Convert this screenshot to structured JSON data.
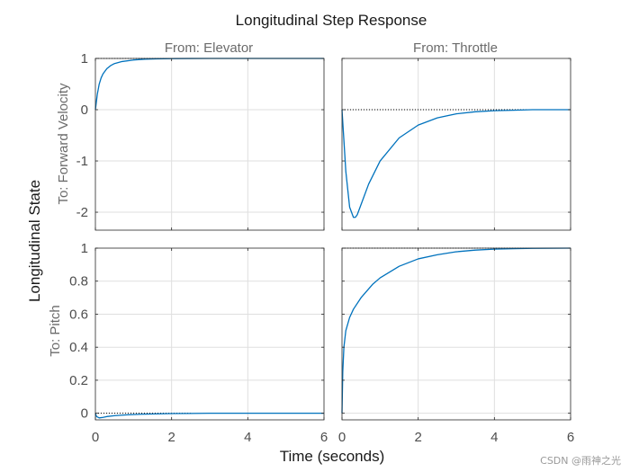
{
  "chart_data": {
    "type": "line",
    "title": "Longitudinal Step Response",
    "xlabel": "Time (seconds)",
    "ylabel": "Longitudinal State",
    "xlim": [
      0,
      6
    ],
    "xticks": [
      "0",
      "2",
      "4",
      "6"
    ],
    "grid": true,
    "line_color": "#0072bd",
    "steady_state_line": "dotted black",
    "columns": [
      "From: Elevator",
      "From: Throttle"
    ],
    "rows": [
      {
        "label": "To: Forward Velocity",
        "ylim": [
          -2.35,
          1
        ],
        "yticks": [
          1,
          0,
          -1,
          -2
        ],
        "ytick_labels": [
          "1",
          "0",
          "-1",
          "-2"
        ]
      },
      {
        "label": "To: Pitch",
        "ylim": [
          -0.04,
          1
        ],
        "yticks": [
          1,
          0.8,
          0.6,
          0.4,
          0.2,
          0
        ],
        "ytick_labels": [
          "1",
          "0.8",
          "0.6",
          "0.4",
          "0.2",
          "0"
        ]
      }
    ],
    "panels": [
      {
        "row": 0,
        "col": 0,
        "final_value": 1,
        "steady_end": 2.2,
        "x": [
          0,
          0.02,
          0.05,
          0.1,
          0.15,
          0.2,
          0.3,
          0.4,
          0.5,
          0.7,
          1.0,
          1.3,
          1.6,
          2.0,
          2.5,
          3,
          4,
          5,
          6
        ],
        "y": [
          0,
          0.12,
          0.3,
          0.5,
          0.62,
          0.7,
          0.8,
          0.86,
          0.9,
          0.94,
          0.97,
          0.985,
          0.992,
          0.997,
          0.999,
          1,
          1,
          1,
          1
        ]
      },
      {
        "row": 0,
        "col": 1,
        "final_value": 0,
        "steady_end": 6,
        "x": [
          0,
          0.05,
          0.1,
          0.2,
          0.3,
          0.35,
          0.4,
          0.5,
          0.7,
          1.0,
          1.5,
          2.0,
          2.5,
          3.0,
          3.5,
          4.0,
          4.5,
          5.0,
          6.0
        ],
        "y": [
          0,
          -0.6,
          -1.2,
          -1.9,
          -2.1,
          -2.1,
          -2.05,
          -1.85,
          -1.45,
          -1.0,
          -0.55,
          -0.3,
          -0.16,
          -0.08,
          -0.04,
          -0.02,
          -0.01,
          0,
          0
        ]
      },
      {
        "row": 1,
        "col": 0,
        "final_value": 0,
        "steady_end": 2.5,
        "x": [
          0,
          0.03,
          0.1,
          0.2,
          0.3,
          0.5,
          0.8,
          1.2,
          1.6,
          2.0,
          2.5,
          3,
          4,
          5,
          6
        ],
        "y": [
          0,
          -0.02,
          -0.028,
          -0.025,
          -0.02,
          -0.015,
          -0.01,
          -0.006,
          -0.004,
          -0.002,
          -0.001,
          0,
          0,
          0,
          0
        ]
      },
      {
        "row": 1,
        "col": 1,
        "final_value": 1,
        "steady_end": 6,
        "x": [
          0,
          0.02,
          0.05,
          0.1,
          0.2,
          0.3,
          0.5,
          0.8,
          1.0,
          1.5,
          2.0,
          2.5,
          3.0,
          3.5,
          4.0,
          4.5,
          5.0,
          6.0
        ],
        "y": [
          0,
          0.25,
          0.4,
          0.5,
          0.58,
          0.63,
          0.7,
          0.78,
          0.82,
          0.89,
          0.935,
          0.96,
          0.978,
          0.988,
          0.994,
          0.997,
          0.999,
          1
        ]
      }
    ]
  },
  "watermark": "CSDN @雨神之光"
}
